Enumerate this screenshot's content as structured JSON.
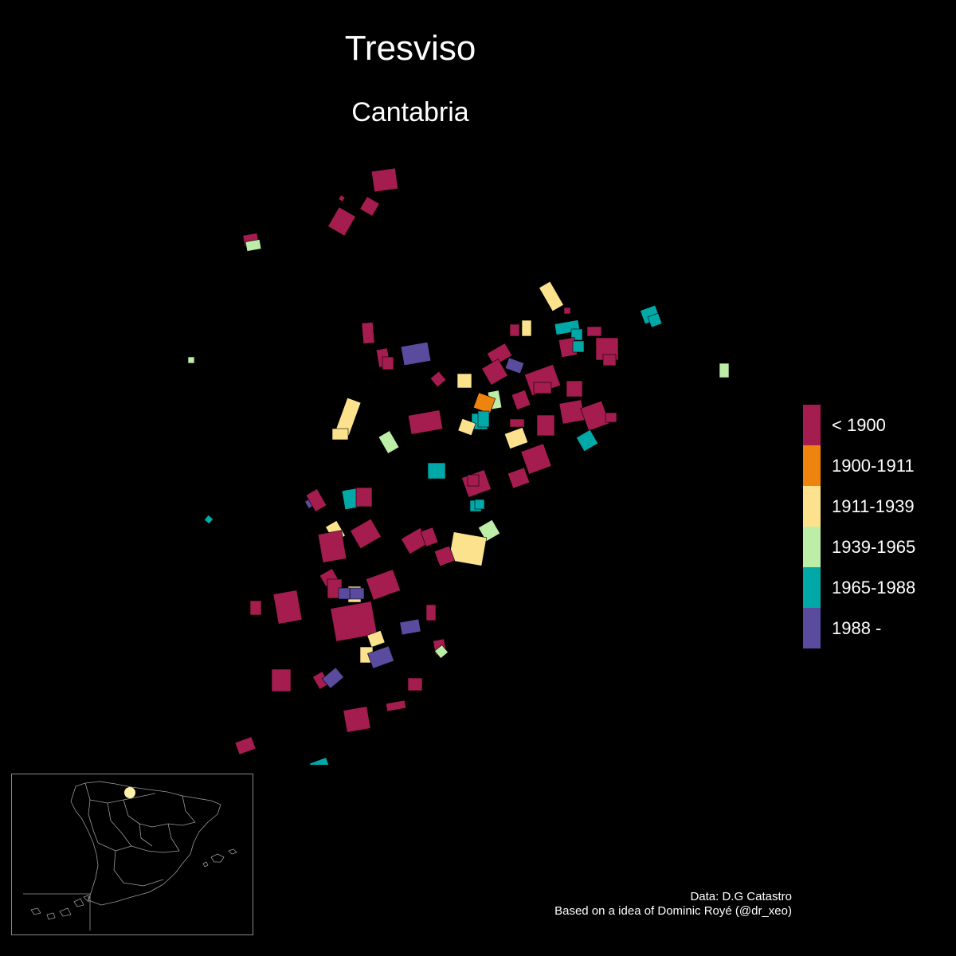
{
  "header": {
    "title": "Tresviso",
    "subtitle": "Cantabria"
  },
  "legend": {
    "items": [
      {
        "label": "< 1900",
        "color": "#a51c4f"
      },
      {
        "label": "1900-1911",
        "color": "#ee830d"
      },
      {
        "label": "1911-1939",
        "color": "#fde28e"
      },
      {
        "label": "1939-1965",
        "color": "#bdeea7"
      },
      {
        "label": "1965-1988",
        "color": "#00a8a8"
      },
      {
        "label": "1988 -",
        "color": "#5b4b9e"
      }
    ]
  },
  "caption": {
    "line1": "Data: D.G Catastro",
    "line2": "Based on a idea of Dominic Royé (@dr_xeo)"
  },
  "inset": {
    "location_marker_color": "#fff2a6"
  }
}
